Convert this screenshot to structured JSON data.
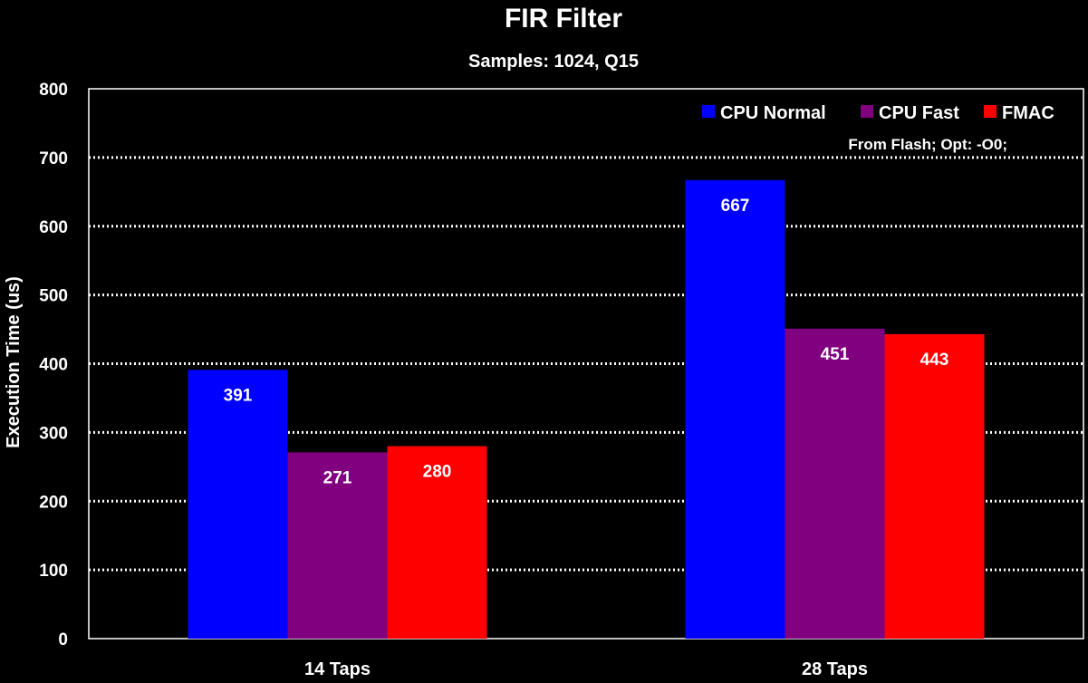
{
  "chart_data": {
    "type": "bar",
    "title": "FIR Filter",
    "subtitle": "Samples: 1024, Q15",
    "xlabel": "",
    "ylabel": "Execution Time (us)",
    "ylim": [
      0,
      800
    ],
    "y_ticks": [
      0,
      100,
      200,
      300,
      400,
      500,
      600,
      700,
      800
    ],
    "grid": true,
    "grid_style": "dotted",
    "legend_position": "top-right",
    "annotation": "From Flash; Opt: -O0;",
    "categories": [
      "14 Taps",
      "28 Taps"
    ],
    "series": [
      {
        "name": "CPU Normal",
        "color": "#0000ff",
        "values": [
          391,
          667
        ]
      },
      {
        "name": "CPU Fast",
        "color": "#800080",
        "values": [
          271,
          451
        ]
      },
      {
        "name": "FMAC",
        "color": "#ff0000",
        "values": [
          280,
          443
        ]
      }
    ]
  },
  "colors": {
    "background": "#000000",
    "text": "#ffffff",
    "grid": "#ffffff"
  }
}
